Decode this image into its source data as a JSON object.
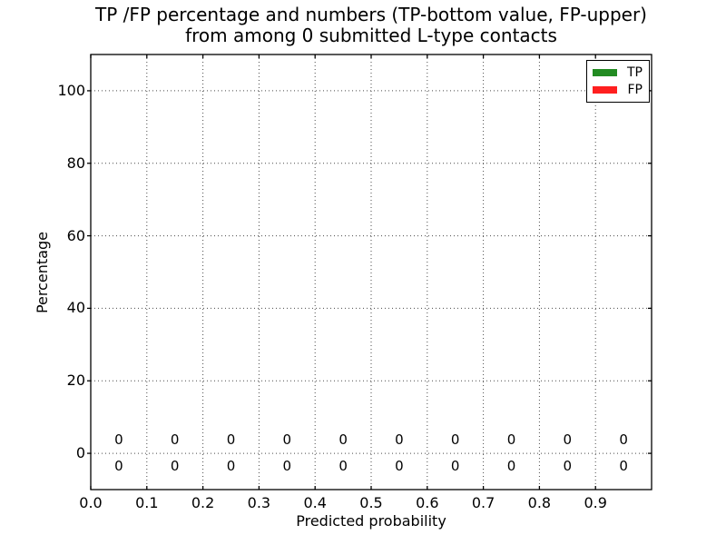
{
  "chart_data": {
    "type": "bar",
    "title_line1": "TP /FP percentage and numbers (TP-bottom value, FP-upper)",
    "title_line2": "from among 0 submitted L-type contacts",
    "xlabel": "Predicted probability",
    "ylabel": "Percentage",
    "xlim": [
      0.0,
      1.0
    ],
    "ylim": [
      -10,
      110
    ],
    "xtick_values": [
      0.0,
      0.1,
      0.2,
      0.3,
      0.4,
      0.5,
      0.6,
      0.7,
      0.8,
      0.9
    ],
    "xtick_labels": [
      "0.0",
      "0.1",
      "0.2",
      "0.3",
      "0.4",
      "0.5",
      "0.6",
      "0.7",
      "0.8",
      "0.9"
    ],
    "ytick_values": [
      0,
      20,
      40,
      60,
      80,
      100
    ],
    "ytick_labels": [
      "0",
      "20",
      "40",
      "60",
      "80",
      "100"
    ],
    "grid": true,
    "bin_centers": [
      0.05,
      0.15,
      0.25,
      0.35,
      0.45,
      0.55,
      0.65,
      0.75,
      0.85,
      0.95
    ],
    "series": [
      {
        "name": "TP",
        "color": "#228b22",
        "label_row": "bottom",
        "percentages": [
          0,
          0,
          0,
          0,
          0,
          0,
          0,
          0,
          0,
          0
        ],
        "counts": [
          0,
          0,
          0,
          0,
          0,
          0,
          0,
          0,
          0,
          0
        ]
      },
      {
        "name": "FP",
        "color": "#ff1f1f",
        "label_row": "upper",
        "percentages": [
          0,
          0,
          0,
          0,
          0,
          0,
          0,
          0,
          0,
          0
        ],
        "counts": [
          0,
          0,
          0,
          0,
          0,
          0,
          0,
          0,
          0,
          0
        ]
      }
    ],
    "legend": {
      "position": "upper right",
      "entries": [
        {
          "label": "TP",
          "color": "#228b22"
        },
        {
          "label": "FP",
          "color": "#ff1f1f"
        }
      ]
    },
    "colors": {
      "spine": "#000000",
      "grid": "#4a4a4a",
      "text": "#000000",
      "background": "#ffffff"
    }
  }
}
